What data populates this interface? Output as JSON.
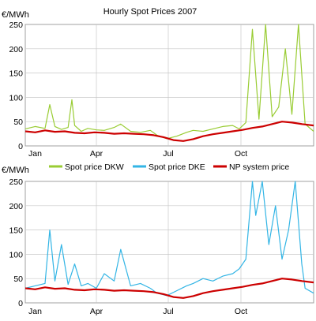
{
  "chart_data": [
    {
      "type": "line",
      "title": "Hourly Spot Prices 2007",
      "ylabel": "€/MWh",
      "xlabel": "",
      "xlim": [
        0,
        8760
      ],
      "ylim": [
        0,
        250
      ],
      "yticks": [
        0,
        50,
        100,
        150,
        200,
        250
      ],
      "categories": [
        "Jan",
        "Apr",
        "Jul",
        "Oct"
      ],
      "grid": true,
      "series": [
        {
          "name": "Spot price DKW",
          "color": "#99cc33",
          "x": [
            0,
            300,
            600,
            744,
            900,
            1100,
            1300,
            1416,
            1500,
            1700,
            1900,
            2160,
            2400,
            2700,
            2900,
            3200,
            3500,
            3800,
            4000,
            4300,
            4600,
            4900,
            5100,
            5400,
            5700,
            6000,
            6300,
            6500,
            6700,
            6900,
            7100,
            7300,
            7500,
            7700,
            7900,
            8100,
            8300,
            8500,
            8760
          ],
          "values": [
            35,
            40,
            36,
            85,
            40,
            34,
            38,
            95,
            42,
            30,
            36,
            33,
            32,
            38,
            45,
            30,
            28,
            32,
            22,
            15,
            20,
            28,
            32,
            30,
            35,
            40,
            42,
            35,
            48,
            240,
            55,
            250,
            60,
            80,
            200,
            65,
            250,
            45,
            30
          ]
        },
        {
          "name": "NP system price",
          "color": "#cc0000",
          "x": [
            0,
            300,
            600,
            900,
            1200,
            1500,
            1800,
            2100,
            2400,
            2700,
            3000,
            3300,
            3600,
            3900,
            4200,
            4500,
            4800,
            5100,
            5400,
            5700,
            6000,
            6300,
            6600,
            6900,
            7200,
            7500,
            7800,
            8100,
            8400,
            8760
          ],
          "values": [
            30,
            28,
            32,
            29,
            30,
            27,
            26,
            28,
            27,
            25,
            26,
            25,
            24,
            22,
            18,
            12,
            10,
            14,
            20,
            24,
            27,
            30,
            33,
            37,
            40,
            45,
            50,
            48,
            45,
            42
          ]
        }
      ]
    },
    {
      "type": "line",
      "title": "",
      "ylabel": "€/MWh",
      "xlabel": "",
      "xlim": [
        0,
        8760
      ],
      "ylim": [
        0,
        250
      ],
      "yticks": [
        0,
        50,
        100,
        150,
        200,
        250
      ],
      "categories": [
        "Jan",
        "Apr",
        "Jul",
        "Oct"
      ],
      "grid": true,
      "series": [
        {
          "name": "Spot price DKE",
          "color": "#33b5e5",
          "x": [
            0,
            300,
            600,
            744,
            900,
            1100,
            1300,
            1500,
            1700,
            1900,
            2160,
            2400,
            2700,
            2900,
            3200,
            3500,
            3800,
            4000,
            4300,
            4600,
            4900,
            5100,
            5400,
            5700,
            6000,
            6300,
            6500,
            6700,
            6900,
            7000,
            7200,
            7400,
            7600,
            7800,
            8000,
            8200,
            8400,
            8500,
            8760
          ],
          "values": [
            30,
            35,
            40,
            150,
            45,
            120,
            38,
            80,
            35,
            40,
            30,
            60,
            45,
            110,
            35,
            40,
            30,
            20,
            15,
            25,
            35,
            40,
            50,
            45,
            55,
            60,
            70,
            90,
            250,
            180,
            250,
            120,
            200,
            90,
            150,
            250,
            80,
            30,
            20
          ]
        },
        {
          "name": "NP system price",
          "color": "#cc0000",
          "x": [
            0,
            300,
            600,
            900,
            1200,
            1500,
            1800,
            2100,
            2400,
            2700,
            3000,
            3300,
            3600,
            3900,
            4200,
            4500,
            4800,
            5100,
            5400,
            5700,
            6000,
            6300,
            6600,
            6900,
            7200,
            7500,
            7800,
            8100,
            8400,
            8760
          ],
          "values": [
            30,
            28,
            32,
            29,
            30,
            27,
            26,
            28,
            27,
            25,
            26,
            25,
            24,
            22,
            18,
            12,
            10,
            14,
            20,
            24,
            27,
            30,
            33,
            37,
            40,
            45,
            50,
            48,
            45,
            42
          ]
        }
      ]
    }
  ]
}
